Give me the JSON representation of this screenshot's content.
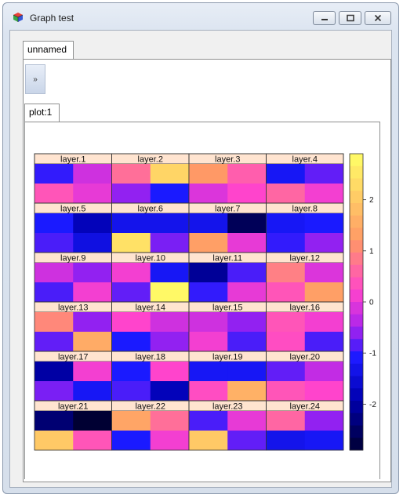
{
  "window": {
    "title": "Graph test",
    "icon": "3d-cube-icon"
  },
  "controls": {
    "minimize_icon": "minimize-icon",
    "maximize_icon": "maximize-icon",
    "close_icon": "close-icon"
  },
  "tabs": {
    "outer": "unnamed",
    "inner": "plot:1",
    "expand_label": "»"
  },
  "chart_data": {
    "type": "heatmap",
    "panels": [
      {
        "title": "layer.1",
        "cells": [
          -1.0,
          -0.2,
          0.4,
          0.0
        ]
      },
      {
        "title": "layer.2",
        "cells": [
          0.7,
          2.2,
          -0.6,
          -1.1
        ]
      },
      {
        "title": "layer.3",
        "cells": [
          1.2,
          0.5,
          -0.1,
          0.2
        ]
      },
      {
        "title": "layer.4",
        "cells": [
          -1.2,
          -0.8,
          0.6,
          0.1
        ]
      },
      {
        "title": "layer.5",
        "cells": [
          -1.1,
          -1.8,
          -0.9,
          -1.4
        ]
      },
      {
        "title": "layer.6",
        "cells": [
          -1.3,
          -1.3,
          2.4,
          -0.7
        ]
      },
      {
        "title": "layer.7",
        "cells": [
          -1.3,
          -2.6,
          1.3,
          0.0
        ]
      },
      {
        "title": "layer.8",
        "cells": [
          -1.2,
          -1.1,
          -1.0,
          -0.6
        ]
      },
      {
        "title": "layer.9",
        "cells": [
          -0.2,
          -0.6,
          -0.9,
          0.1
        ]
      },
      {
        "title": "layer.10",
        "cells": [
          0.1,
          -1.2,
          -0.8,
          2.8
        ]
      },
      {
        "title": "layer.11",
        "cells": [
          -2.1,
          -0.9,
          -1.0,
          0.0
        ]
      },
      {
        "title": "layer.12",
        "cells": [
          0.9,
          -0.1,
          0.4,
          1.3
        ]
      },
      {
        "title": "layer.13",
        "cells": [
          1.0,
          -0.6,
          -0.8,
          1.5
        ]
      },
      {
        "title": "layer.14",
        "cells": [
          0.2,
          -0.2,
          -1.1,
          -0.6
        ]
      },
      {
        "title": "layer.15",
        "cells": [
          -0.2,
          -0.6,
          0.1,
          -0.9
        ]
      },
      {
        "title": "layer.16",
        "cells": [
          0.4,
          0.1,
          0.3,
          -0.9
        ]
      },
      {
        "title": "layer.17",
        "cells": [
          -2.0,
          0.1,
          -0.7,
          -1.2
        ]
      },
      {
        "title": "layer.18",
        "cells": [
          -1.1,
          0.2,
          -0.9,
          -1.8
        ]
      },
      {
        "title": "layer.19",
        "cells": [
          -1.2,
          -1.2,
          0.3,
          1.6
        ]
      },
      {
        "title": "layer.20",
        "cells": [
          -0.8,
          -0.3,
          0.4,
          0.2
        ]
      },
      {
        "title": "layer.21",
        "cells": [
          -2.4,
          -2.9,
          2.0,
          0.4
        ]
      },
      {
        "title": "layer.22",
        "cells": [
          1.4,
          0.7,
          -1.1,
          0.1
        ]
      },
      {
        "title": "layer.23",
        "cells": [
          -0.9,
          0.0,
          2.0,
          -0.8
        ]
      },
      {
        "title": "layer.24",
        "cells": [
          0.6,
          -0.6,
          -1.3,
          -1.2
        ]
      }
    ],
    "colorbar": {
      "min": -2.9,
      "max": 2.9,
      "ticks": [
        2,
        1,
        0,
        -1,
        -2
      ]
    },
    "colors": {
      "high": "#ffff66",
      "mid_high": "#ff9966",
      "mid": "#ff44cc",
      "mid_low": "#aa22ee",
      "low": "#1a1aff",
      "lowest": "#000033",
      "strip_bg": "#ffe4d0"
    }
  }
}
